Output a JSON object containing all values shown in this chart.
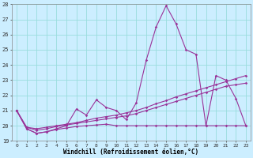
{
  "xlabel": "Windchill (Refroidissement éolien,°C)",
  "background_color": "#cceeff",
  "grid_color": "#99dddd",
  "line_color": "#993399",
  "xlim_min": -0.5,
  "xlim_max": 23.5,
  "ylim_min": 19,
  "ylim_max": 28,
  "yticks": [
    19,
    20,
    21,
    22,
    23,
    24,
    25,
    26,
    27,
    28
  ],
  "xticks": [
    0,
    1,
    2,
    3,
    4,
    5,
    6,
    7,
    8,
    9,
    10,
    11,
    12,
    13,
    14,
    15,
    16,
    17,
    18,
    19,
    20,
    21,
    22,
    23
  ],
  "series": [
    [
      21.0,
      19.8,
      19.5,
      19.6,
      19.8,
      20.0,
      21.1,
      20.7,
      21.7,
      21.2,
      21.0,
      20.4,
      21.5,
      24.3,
      26.5,
      27.9,
      26.7,
      25.0,
      24.7,
      20.0,
      23.3,
      23.0,
      21.8,
      20.0
    ],
    [
      21.0,
      19.9,
      19.8,
      19.9,
      20.0,
      20.1,
      20.2,
      20.35,
      20.5,
      20.6,
      20.7,
      20.85,
      21.0,
      21.2,
      21.45,
      21.65,
      21.9,
      22.1,
      22.3,
      22.5,
      22.7,
      22.9,
      23.1,
      23.3
    ],
    [
      21.0,
      19.9,
      19.7,
      19.8,
      19.95,
      20.05,
      20.15,
      20.25,
      20.35,
      20.45,
      20.55,
      20.65,
      20.8,
      21.0,
      21.2,
      21.4,
      21.6,
      21.8,
      22.0,
      22.2,
      22.4,
      22.6,
      22.7,
      22.8
    ],
    [
      21.0,
      19.8,
      19.5,
      19.6,
      19.75,
      19.85,
      19.95,
      20.0,
      20.05,
      20.1,
      20.0,
      20.0,
      20.0,
      20.0,
      20.0,
      20.0,
      20.0,
      20.0,
      20.0,
      20.0,
      20.0,
      20.0,
      20.0,
      20.0
    ]
  ]
}
